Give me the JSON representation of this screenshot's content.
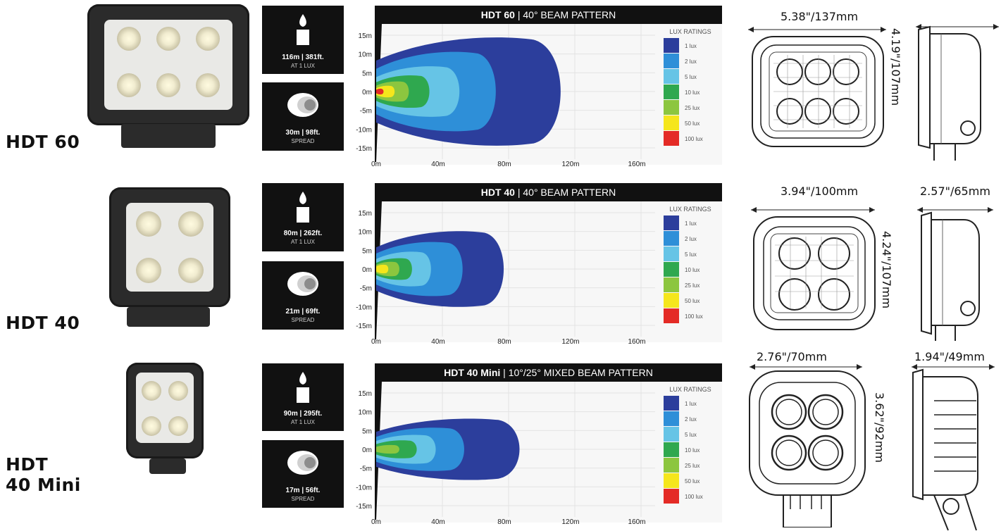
{
  "lux_ratings_title": "LUX RATINGS",
  "lux_levels": [
    {
      "label": "1 lux",
      "color": "#2c3e9c"
    },
    {
      "label": "2 lux",
      "color": "#2e8fd8"
    },
    {
      "label": "5 lux",
      "color": "#66c4e6"
    },
    {
      "label": "10 lux",
      "color": "#2fa84f"
    },
    {
      "label": "25 lux",
      "color": "#8cc63f"
    },
    {
      "label": "50 lux",
      "color": "#f5e61c"
    },
    {
      "label": "100 lux",
      "color": "#e42b26"
    }
  ],
  "y_ticks": [
    "15m",
    "10m",
    "5m",
    "0m",
    "-5m",
    "-10m",
    "-15m"
  ],
  "x_ticks": [
    "0m",
    "40m",
    "80m",
    "120m",
    "160m"
  ],
  "models": [
    {
      "label_line1": "HDT 60",
      "label_line2": "",
      "title_bold": "HDT 60",
      "title_rest": " | 40° BEAM PATTERN",
      "distance": "116m | 381ft.",
      "distance_sub": "AT 1 LUX",
      "spread": "30m | 98ft.",
      "spread_sub": "SPREAD",
      "dim_width": "5.38\"/137mm",
      "dim_height": "4.19\"/107mm",
      "dim_depth": "",
      "chart_data": {
        "type": "area",
        "x_range": [
          0,
          160
        ],
        "y_range": [
          -15,
          15
        ],
        "contours": [
          {
            "lux": 1,
            "reach": 116,
            "half_width": 15
          },
          {
            "lux": 2,
            "reach": 75,
            "half_width": 11
          },
          {
            "lux": 5,
            "reach": 52,
            "half_width": 7
          },
          {
            "lux": 10,
            "reach": 33,
            "half_width": 4.5
          },
          {
            "lux": 25,
            "reach": 20,
            "half_width": 2.8
          },
          {
            "lux": 50,
            "reach": 11,
            "half_width": 1.6
          },
          {
            "lux": 100,
            "reach": 4,
            "half_width": 0.8
          }
        ]
      }
    },
    {
      "label_line1": "HDT 40",
      "label_line2": "",
      "title_bold": "HDT 40",
      "title_rest": " | 40° BEAM PATTERN",
      "distance": "80m | 262ft.",
      "distance_sub": "AT 1 LUX",
      "spread": "21m | 69ft.",
      "spread_sub": "SPREAD",
      "dim_width": "3.94\"/100mm",
      "dim_height": "4.24\"/107mm",
      "dim_depth": "2.57\"/65mm",
      "chart_data": {
        "type": "area",
        "x_range": [
          0,
          160
        ],
        "y_range": [
          -15,
          15
        ],
        "contours": [
          {
            "lux": 1,
            "reach": 80,
            "half_width": 10.5
          },
          {
            "lux": 2,
            "reach": 54,
            "half_width": 7.5
          },
          {
            "lux": 5,
            "reach": 34,
            "half_width": 4.8
          },
          {
            "lux": 10,
            "reach": 22,
            "half_width": 3
          },
          {
            "lux": 25,
            "reach": 14,
            "half_width": 2
          },
          {
            "lux": 50,
            "reach": 7,
            "half_width": 1.2
          }
        ]
      }
    },
    {
      "label_line1": "HDT",
      "label_line2": "40 Mini",
      "title_bold": "HDT 40 Mini",
      "title_rest": " | 10°/25° MIXED BEAM PATTERN",
      "distance": "90m | 295ft.",
      "distance_sub": "AT 1 LUX",
      "spread": "17m | 56ft.",
      "spread_sub": "SPREAD",
      "dim_width": "2.76\"/70mm",
      "dim_height": "3.62\"/92mm",
      "dim_depth": "1.94\"/49mm",
      "chart_data": {
        "type": "area",
        "x_range": [
          0,
          160
        ],
        "y_range": [
          -15,
          15
        ],
        "contours": [
          {
            "lux": 1,
            "reach": 90,
            "half_width": 8.5
          },
          {
            "lux": 2,
            "reach": 55,
            "half_width": 6
          },
          {
            "lux": 5,
            "reach": 37,
            "half_width": 4
          },
          {
            "lux": 10,
            "reach": 25,
            "half_width": 2.5
          },
          {
            "lux": 25,
            "reach": 14,
            "half_width": 1.2
          }
        ]
      }
    }
  ]
}
